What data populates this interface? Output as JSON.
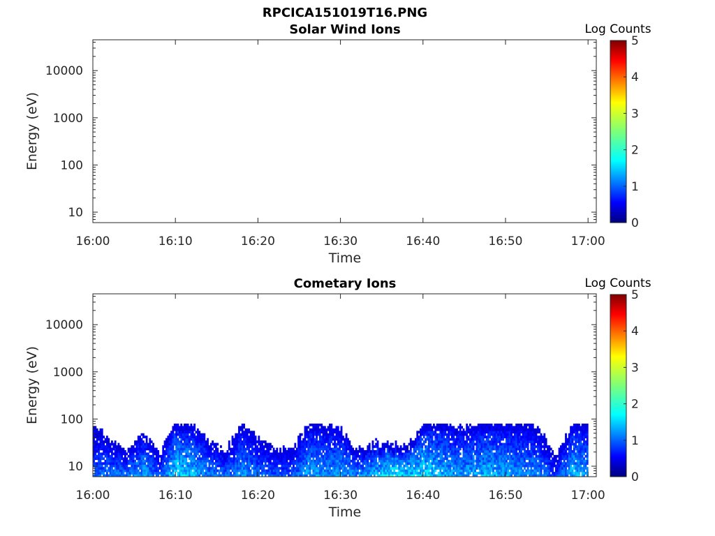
{
  "figure": {
    "title": "RPCICA151019T16.PNG"
  },
  "chart_data": [
    {
      "type": "heatmap",
      "title": "Solar Wind Ions",
      "xlabel": "Time",
      "ylabel": "Energy (eV)",
      "yscale": "log",
      "ylim": [
        6,
        45000
      ],
      "xlim": [
        "16:00",
        "17:01"
      ],
      "x_ticks": [
        "16:00",
        "16:10",
        "16:20",
        "16:30",
        "16:40",
        "16:50",
        "17:00"
      ],
      "y_ticks": [
        "10",
        "100",
        "1000",
        "10000"
      ],
      "colorbar": {
        "label": "Log Counts",
        "range": [
          0,
          5
        ],
        "ticks": [
          "0",
          "1",
          "2",
          "3",
          "4",
          "5"
        ],
        "colormap": "jet"
      },
      "data": []
    },
    {
      "type": "heatmap",
      "title": "Cometary Ions",
      "xlabel": "Time",
      "ylabel": "Energy (eV)",
      "yscale": "log",
      "ylim": [
        6,
        45000
      ],
      "xlim": [
        "16:00",
        "17:01"
      ],
      "x_ticks": [
        "16:00",
        "16:10",
        "16:20",
        "16:30",
        "16:40",
        "16:50",
        "17:00"
      ],
      "y_ticks": [
        "10",
        "100",
        "1000",
        "10000"
      ],
      "colorbar": {
        "label": "Log Counts",
        "range": [
          0,
          5
        ],
        "ticks": [
          "0",
          "1",
          "2",
          "3",
          "4",
          "5"
        ],
        "colormap": "jet"
      },
      "energy_range_eV": [
        6,
        80
      ],
      "envelope": [
        {
          "t": "16:00",
          "upper": 80,
          "intensity": 1.0
        },
        {
          "t": "16:02",
          "upper": 35,
          "intensity": 1.2
        },
        {
          "t": "16:04",
          "upper": 20,
          "intensity": 1.1
        },
        {
          "t": "16:06",
          "upper": 50,
          "intensity": 1.4
        },
        {
          "t": "16:08",
          "upper": 18,
          "intensity": 1.0
        },
        {
          "t": "16:10",
          "upper": 80,
          "intensity": 1.7
        },
        {
          "t": "16:12",
          "upper": 80,
          "intensity": 1.5
        },
        {
          "t": "16:14",
          "upper": 30,
          "intensity": 1.2
        },
        {
          "t": "16:16",
          "upper": 22,
          "intensity": 1.1
        },
        {
          "t": "16:18",
          "upper": 80,
          "intensity": 1.3
        },
        {
          "t": "16:20",
          "upper": 35,
          "intensity": 1.1
        },
        {
          "t": "16:22",
          "upper": 25,
          "intensity": 1.0
        },
        {
          "t": "16:24",
          "upper": 20,
          "intensity": 1.0
        },
        {
          "t": "16:26",
          "upper": 80,
          "intensity": 1.4
        },
        {
          "t": "16:28",
          "upper": 70,
          "intensity": 1.3
        },
        {
          "t": "16:30",
          "upper": 60,
          "intensity": 1.4
        },
        {
          "t": "16:32",
          "upper": 22,
          "intensity": 1.2
        },
        {
          "t": "16:34",
          "upper": 30,
          "intensity": 1.5
        },
        {
          "t": "16:36",
          "upper": 28,
          "intensity": 1.8
        },
        {
          "t": "16:38",
          "upper": 25,
          "intensity": 1.6
        },
        {
          "t": "16:40",
          "upper": 80,
          "intensity": 1.7
        },
        {
          "t": "16:42",
          "upper": 80,
          "intensity": 1.5
        },
        {
          "t": "16:44",
          "upper": 70,
          "intensity": 1.3
        },
        {
          "t": "16:46",
          "upper": 80,
          "intensity": 1.4
        },
        {
          "t": "16:48",
          "upper": 80,
          "intensity": 1.5
        },
        {
          "t": "16:50",
          "upper": 80,
          "intensity": 1.4
        },
        {
          "t": "16:52",
          "upper": 80,
          "intensity": 1.3
        },
        {
          "t": "16:54",
          "upper": 60,
          "intensity": 1.2
        },
        {
          "t": "16:56",
          "upper": 15,
          "intensity": 0.9
        },
        {
          "t": "16:58",
          "upper": 80,
          "intensity": 1.5
        },
        {
          "t": "17:00",
          "upper": 80,
          "intensity": 1.3
        }
      ]
    }
  ]
}
